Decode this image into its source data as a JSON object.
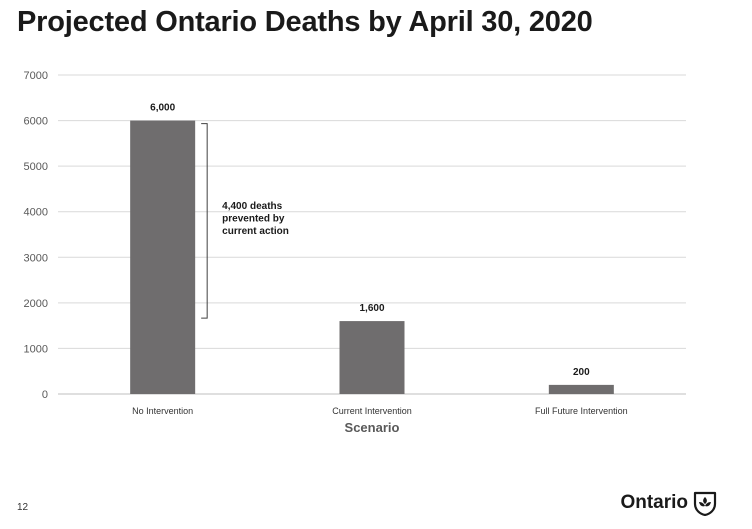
{
  "page": {
    "title": "Projected Ontario Deaths by April 30, 2020",
    "page_number": "12",
    "logo_text": "Ontario",
    "logo_icon": "trillium-icon"
  },
  "chart_data": {
    "type": "bar",
    "title": "Projected Ontario Deaths by April 30, 2020",
    "xlabel": "Scenario",
    "ylabel": "",
    "categories": [
      "No Intervention",
      "Current Intervention",
      "Full Future Intervention"
    ],
    "values": [
      6000,
      1600,
      200
    ],
    "data_labels": [
      "6,000",
      "1,600",
      "200"
    ],
    "yticks": [
      "0",
      "1000",
      "2000",
      "3000",
      "4000",
      "5000",
      "6000",
      "7000"
    ],
    "ytick_values": [
      0,
      1000,
      2000,
      3000,
      4000,
      5000,
      6000,
      7000
    ],
    "ylim": [
      0,
      7000
    ],
    "grid": true,
    "bar_color": "#6f6d6e",
    "grid_color": "#d9d9d9",
    "annotation": {
      "lines": [
        "4,400 deaths",
        "prevented by",
        "current action"
      ],
      "from_value": 6000,
      "to_value": 1600
    }
  }
}
